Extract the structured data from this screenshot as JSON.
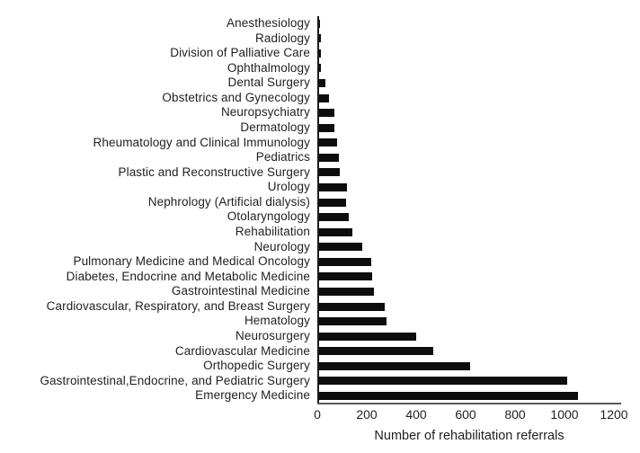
{
  "chart_data": {
    "type": "bar",
    "orientation": "horizontal",
    "title": "",
    "xlabel": "Number of rehabilitation referrals",
    "ylabel": "",
    "xlim": [
      0,
      1200
    ],
    "xticks": [
      0,
      200,
      400,
      600,
      800,
      1000,
      1200
    ],
    "grid": false,
    "legend": "none",
    "bar_color": "#0d0d0d",
    "categories": [
      "Anesthesiology",
      "Radiology",
      "Division of Palliative Care",
      "Ophthalmology",
      "Dental Surgery",
      "Obstetrics and Gynecology",
      "Neuropsychiatry",
      "Dermatology",
      "Rheumatology and Clinical Immunology",
      "Pediatrics",
      "Plastic and Reconstructive Surgery",
      "Urology",
      "Nephrology (Artificial dialysis)",
      "Otolaryngology",
      "Rehabilitation",
      "Neurology",
      "Pulmonary Medicine and Medical Oncology",
      "Diabetes, Endocrine and Metabolic Medicine",
      "Gastrointestinal Medicine",
      "Cardiovascular, Respiratory, and Breast Surgery",
      "Hematology",
      "Neurosurgery",
      "Cardiovascular Medicine",
      "Orthopedic Surgery",
      "Gastrointestinal,Endocrine, and Pediatric Surgery",
      "Emergency Medicine"
    ],
    "values": [
      2,
      6,
      7,
      9,
      27,
      40,
      62,
      61,
      74,
      79,
      82,
      113,
      109,
      121,
      133,
      173,
      210,
      216,
      223,
      264,
      272,
      392,
      461,
      610,
      1003,
      1049
    ]
  }
}
